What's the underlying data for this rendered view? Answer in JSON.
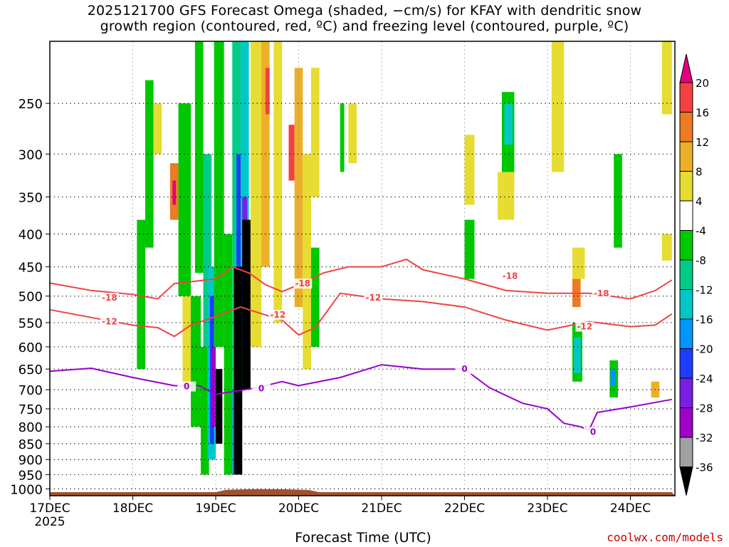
{
  "title_line1": "2025121700 GFS Forecast Omega (shaded, −cm/s) for KFAY with dendritic snow",
  "title_line2": "growth region (contoured, red, ºC) and freezing level (contoured, purple, ºC)",
  "credit": "coolwx.com/models",
  "colors": {
    "dendritic_contour": "#ee4444",
    "freezing_contour": "#9900cc",
    "terrain": "#a0522d"
  },
  "chart_data": {
    "type": "heatmap",
    "title": "2025121700 GFS Forecast Omega (shaded, −cm/s) for KFAY with dendritic snow growth region (contoured, red, ºC) and freezing level (contoured, purple, ºC)",
    "xlabel": "Forecast Time (UTC)",
    "ylabel": "",
    "x_ticks": [
      "17DEC",
      "18DEC",
      "19DEC",
      "20DEC",
      "21DEC",
      "22DEC",
      "23DEC",
      "24DEC"
    ],
    "x_tick_sub": "2025",
    "x_range_days": [
      0,
      7.5
    ],
    "y_ticks": [
      250,
      300,
      350,
      400,
      450,
      500,
      550,
      600,
      650,
      700,
      750,
      800,
      850,
      900,
      950,
      1000
    ],
    "y_range_hpa": [
      200,
      1025
    ],
    "y_scale": "log-pressure (inverted)",
    "grid": true,
    "colorbar": {
      "labels": [
        20,
        16,
        12,
        8,
        4,
        -4,
        -8,
        -12,
        -16,
        -20,
        -24,
        -28,
        -32,
        -36
      ],
      "bins": [
        {
          "value": 22,
          "color": "#e6007e"
        },
        {
          "value": 18,
          "color": "#f44040"
        },
        {
          "value": 14,
          "color": "#ee7a22"
        },
        {
          "value": 10,
          "color": "#ebb028"
        },
        {
          "value": 6,
          "color": "#e6dc32"
        },
        {
          "value": 0,
          "color": "#ffffff"
        },
        {
          "value": -6,
          "color": "#00c800"
        },
        {
          "value": -10,
          "color": "#00cc88"
        },
        {
          "value": -14,
          "color": "#00c8c8"
        },
        {
          "value": -18,
          "color": "#0096ff"
        },
        {
          "value": -22,
          "color": "#1e3cff"
        },
        {
          "value": -26,
          "color": "#7a1ee6"
        },
        {
          "value": -30,
          "color": "#a000c8"
        },
        {
          "value": -34,
          "color": "#a0a0a0"
        },
        {
          "value": -38,
          "color": "#000000"
        }
      ]
    },
    "contours": [
      {
        "label": "-18",
        "color": "#ee4444",
        "points": [
          [
            0,
            477
          ],
          [
            0.5,
            490
          ],
          [
            1,
            497
          ],
          [
            1.3,
            505
          ],
          [
            1.5,
            478
          ],
          [
            2,
            470
          ],
          [
            2.2,
            450
          ],
          [
            2.4,
            460
          ],
          [
            2.6,
            480
          ],
          [
            2.8,
            492
          ],
          [
            3,
            480
          ],
          [
            3.3,
            460
          ],
          [
            3.6,
            450
          ],
          [
            4,
            450
          ],
          [
            4.3,
            438
          ],
          [
            4.5,
            455
          ],
          [
            5,
            470
          ],
          [
            5.5,
            490
          ],
          [
            6,
            495
          ],
          [
            6.5,
            495
          ],
          [
            7,
            505
          ],
          [
            7.3,
            490
          ],
          [
            7.5,
            472
          ]
        ]
      },
      {
        "label": "-12",
        "color": "#ee4444",
        "points": [
          [
            0,
            525
          ],
          [
            0.5,
            540
          ],
          [
            1,
            555
          ],
          [
            1.3,
            560
          ],
          [
            1.5,
            578
          ],
          [
            1.7,
            555
          ],
          [
            2,
            538
          ],
          [
            2.3,
            520
          ],
          [
            2.6,
            535
          ],
          [
            2.8,
            545
          ],
          [
            3,
            575
          ],
          [
            3.2,
            560
          ],
          [
            3.5,
            495
          ],
          [
            4,
            505
          ],
          [
            4.5,
            510
          ],
          [
            5,
            520
          ],
          [
            5.5,
            545
          ],
          [
            6,
            565
          ],
          [
            6.5,
            548
          ],
          [
            7,
            558
          ],
          [
            7.3,
            555
          ],
          [
            7.5,
            533
          ]
        ]
      },
      {
        "label": "0",
        "color": "#9900cc",
        "points": [
          [
            0,
            655
          ],
          [
            0.5,
            648
          ],
          [
            1,
            670
          ],
          [
            1.5,
            690
          ],
          [
            1.8,
            690
          ],
          [
            2,
            712
          ],
          [
            2.5,
            695
          ],
          [
            2.8,
            680
          ],
          [
            3,
            690
          ],
          [
            3.5,
            670
          ],
          [
            4,
            640
          ],
          [
            4.5,
            650
          ],
          [
            5,
            650
          ],
          [
            5.3,
            695
          ],
          [
            5.7,
            735
          ],
          [
            6,
            750
          ],
          [
            6.2,
            790
          ],
          [
            6.4,
            800
          ],
          [
            6.5,
            810
          ],
          [
            6.6,
            760
          ],
          [
            7,
            745
          ],
          [
            7.5,
            725
          ]
        ]
      }
    ],
    "contour_labels": [
      {
        "text": "-18",
        "x": 0.72,
        "p": 503
      },
      {
        "text": "-18",
        "x": 3.05,
        "p": 478
      },
      {
        "text": "-18",
        "x": 5.55,
        "p": 465
      },
      {
        "text": "-18",
        "x": 6.65,
        "p": 495
      },
      {
        "text": "-12",
        "x": 0.72,
        "p": 548
      },
      {
        "text": "-12",
        "x": 2.75,
        "p": 535
      },
      {
        "text": "-12",
        "x": 3.9,
        "p": 503
      },
      {
        "text": "-12",
        "x": 6.45,
        "p": 558
      },
      {
        "text": "0",
        "x": 1.65,
        "p": 692
      },
      {
        "text": "0",
        "x": 2.55,
        "p": 697
      },
      {
        "text": "0",
        "x": 5.0,
        "p": 650
      },
      {
        "text": "0",
        "x": 6.55,
        "p": 815
      }
    ],
    "omega_cells": [
      {
        "x0": 1.05,
        "x1": 1.15,
        "p0": 380,
        "p1": 650,
        "v": -6
      },
      {
        "x0": 1.15,
        "x1": 1.25,
        "p0": 230,
        "p1": 420,
        "v": -6
      },
      {
        "x0": 1.25,
        "x1": 1.35,
        "p0": 250,
        "p1": 300,
        "v": 6
      },
      {
        "x0": 1.45,
        "x1": 1.55,
        "p0": 310,
        "p1": 380,
        "v": 14
      },
      {
        "x0": 1.48,
        "x1": 1.52,
        "p0": 330,
        "p1": 360,
        "v": 22
      },
      {
        "x0": 1.55,
        "x1": 1.7,
        "p0": 250,
        "p1": 500,
        "v": -6
      },
      {
        "x0": 1.6,
        "x1": 1.7,
        "p0": 500,
        "p1": 700,
        "v": 6
      },
      {
        "x0": 1.7,
        "x1": 1.82,
        "p0": 500,
        "p1": 800,
        "v": -6
      },
      {
        "x0": 1.75,
        "x1": 1.85,
        "p0": 200,
        "p1": 460,
        "v": -6
      },
      {
        "x0": 1.82,
        "x1": 1.92,
        "p0": 600,
        "p1": 950,
        "v": -6
      },
      {
        "x0": 1.85,
        "x1": 1.95,
        "p0": 300,
        "p1": 600,
        "v": -10
      },
      {
        "x0": 1.9,
        "x1": 2.0,
        "p0": 450,
        "p1": 900,
        "v": -14
      },
      {
        "x0": 1.93,
        "x1": 1.98,
        "p0": 500,
        "p1": 850,
        "v": -22
      },
      {
        "x0": 1.95,
        "x1": 2.0,
        "p0": 600,
        "p1": 800,
        "v": -30
      },
      {
        "x0": 2.0,
        "x1": 2.08,
        "p0": 650,
        "p1": 850,
        "v": -38
      },
      {
        "x0": 1.98,
        "x1": 2.1,
        "p0": 200,
        "p1": 600,
        "v": -6
      },
      {
        "x0": 2.1,
        "x1": 2.2,
        "p0": 400,
        "p1": 950,
        "v": -6
      },
      {
        "x0": 2.2,
        "x1": 2.3,
        "p0": 200,
        "p1": 700,
        "v": -10
      },
      {
        "x0": 2.25,
        "x1": 2.32,
        "p0": 300,
        "p1": 480,
        "v": -22
      },
      {
        "x0": 2.3,
        "x1": 2.4,
        "p0": 200,
        "p1": 700,
        "v": -14
      },
      {
        "x0": 2.32,
        "x1": 2.38,
        "p0": 350,
        "p1": 500,
        "v": -26
      },
      {
        "x0": 2.2,
        "x1": 2.28,
        "p0": 700,
        "p1": 950,
        "v": -18
      },
      {
        "x0": 2.22,
        "x1": 2.32,
        "p0": 450,
        "p1": 950,
        "v": -38
      },
      {
        "x0": 2.32,
        "x1": 2.42,
        "p0": 380,
        "p1": 700,
        "v": -38
      },
      {
        "x0": 2.42,
        "x1": 2.55,
        "p0": 200,
        "p1": 600,
        "v": 6
      },
      {
        "x0": 2.55,
        "x1": 2.65,
        "p0": 200,
        "p1": 450,
        "v": 10
      },
      {
        "x0": 2.6,
        "x1": 2.65,
        "p0": 220,
        "p1": 260,
        "v": 18
      },
      {
        "x0": 2.7,
        "x1": 2.8,
        "p0": 200,
        "p1": 550,
        "v": 6
      },
      {
        "x0": 2.88,
        "x1": 2.95,
        "p0": 270,
        "p1": 330,
        "v": 18
      },
      {
        "x0": 2.95,
        "x1": 3.05,
        "p0": 220,
        "p1": 520,
        "v": 10
      },
      {
        "x0": 3.05,
        "x1": 3.15,
        "p0": 300,
        "p1": 650,
        "v": 6
      },
      {
        "x0": 3.15,
        "x1": 3.25,
        "p0": 420,
        "p1": 600,
        "v": -6
      },
      {
        "x0": 3.15,
        "x1": 3.25,
        "p0": 220,
        "p1": 350,
        "v": 6
      },
      {
        "x0": 3.5,
        "x1": 3.55,
        "p0": 250,
        "p1": 320,
        "v": -6
      },
      {
        "x0": 3.6,
        "x1": 3.7,
        "p0": 250,
        "p1": 310,
        "v": 6
      },
      {
        "x0": 5.45,
        "x1": 5.6,
        "p0": 240,
        "p1": 330,
        "v": -6
      },
      {
        "x0": 5.48,
        "x1": 5.58,
        "p0": 250,
        "p1": 290,
        "v": -14
      },
      {
        "x0": 5.4,
        "x1": 5.6,
        "p0": 320,
        "p1": 380,
        "v": 6
      },
      {
        "x0": 5.0,
        "x1": 5.12,
        "p0": 280,
        "p1": 360,
        "v": 6
      },
      {
        "x0": 5.0,
        "x1": 5.12,
        "p0": 380,
        "p1": 470,
        "v": -6
      },
      {
        "x0": 6.05,
        "x1": 6.2,
        "p0": 200,
        "p1": 320,
        "v": 6
      },
      {
        "x0": 6.3,
        "x1": 6.45,
        "p0": 420,
        "p1": 470,
        "v": 6
      },
      {
        "x0": 6.3,
        "x1": 6.4,
        "p0": 470,
        "p1": 520,
        "v": 14
      },
      {
        "x0": 6.3,
        "x1": 6.42,
        "p0": 550,
        "p1": 680,
        "v": -6
      },
      {
        "x0": 6.32,
        "x1": 6.4,
        "p0": 580,
        "p1": 660,
        "v": -14
      },
      {
        "x0": 6.75,
        "x1": 6.85,
        "p0": 630,
        "p1": 720,
        "v": -6
      },
      {
        "x0": 6.76,
        "x1": 6.82,
        "p0": 650,
        "p1": 690,
        "v": -18
      },
      {
        "x0": 6.8,
        "x1": 6.9,
        "p0": 300,
        "p1": 420,
        "v": -6
      },
      {
        "x0": 7.38,
        "x1": 7.5,
        "p0": 200,
        "p1": 260,
        "v": 6
      },
      {
        "x0": 7.38,
        "x1": 7.5,
        "p0": 400,
        "p1": 440,
        "v": 6
      },
      {
        "x0": 7.25,
        "x1": 7.35,
        "p0": 680,
        "p1": 720,
        "v": 10
      }
    ]
  }
}
